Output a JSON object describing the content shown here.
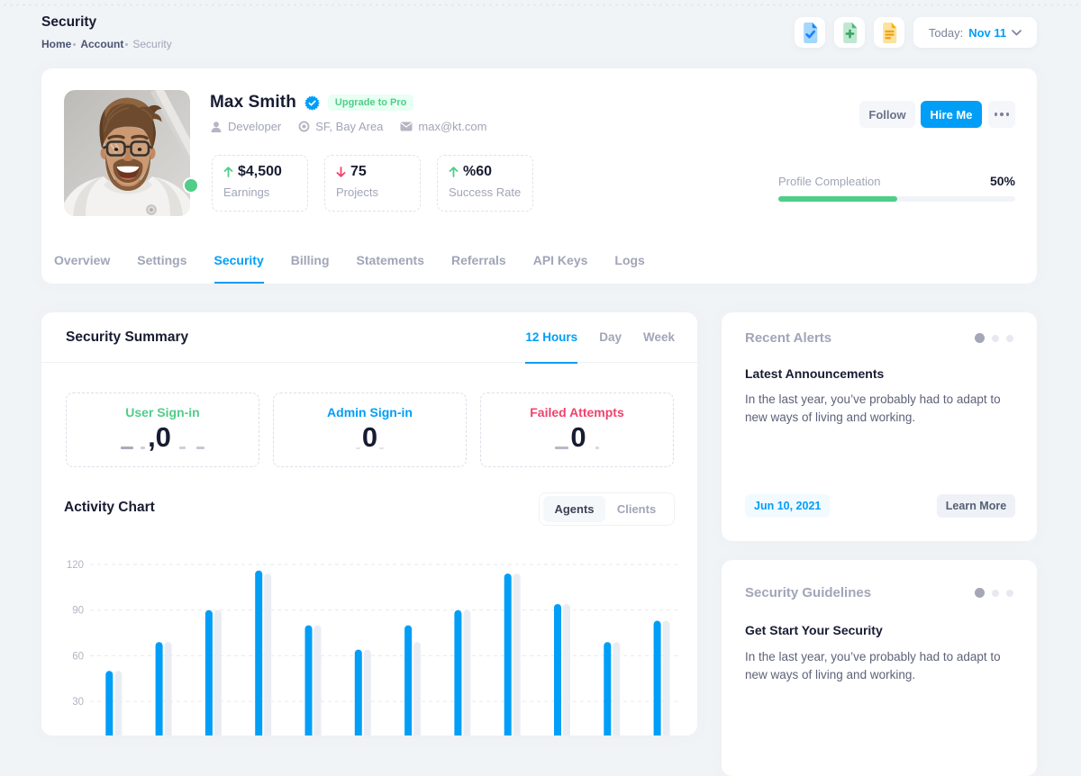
{
  "page": {
    "title": "Security",
    "breadcrumb": [
      "Home",
      "Account",
      "Security"
    ]
  },
  "toolbar": {
    "icons": [
      "file-check",
      "file-plus",
      "file-lines"
    ],
    "date_label": "Today:",
    "date_value": "Nov 11"
  },
  "profile": {
    "name": "Max Smith",
    "badge": "Upgrade to Pro",
    "meta": [
      {
        "icon": "user-icon",
        "text": "Developer"
      },
      {
        "icon": "pin-icon",
        "text": "SF, Bay Area"
      },
      {
        "icon": "mail-icon",
        "text": "max@kt.com"
      }
    ],
    "stats": [
      {
        "direction": "up",
        "value": "$4,500",
        "label": "Earnings"
      },
      {
        "direction": "down",
        "value": "75",
        "label": "Projects"
      },
      {
        "direction": "up",
        "value": "%60",
        "label": "Success Rate"
      }
    ],
    "actions": {
      "follow": "Follow",
      "hire": "Hire Me"
    },
    "progress": {
      "label": "Profile Compleation",
      "percent": "50%",
      "value": 50
    },
    "tabs": [
      "Overview",
      "Settings",
      "Security",
      "Billing",
      "Statements",
      "Referrals",
      "API Keys",
      "Logs"
    ],
    "active_tab": "Security"
  },
  "summary": {
    "title": "Security Summary",
    "range_tabs": [
      "12 Hours",
      "Day",
      "Week"
    ],
    "active_range": "12 Hours",
    "counters": [
      {
        "label": "User Sign-in",
        "value": ",0",
        "color": "#50cd89"
      },
      {
        "label": "Admin Sign-in",
        "value": "0",
        "color": "#009ef7"
      },
      {
        "label": "Failed Attempts",
        "value": "0",
        "color": "#f1416c"
      }
    ]
  },
  "activity": {
    "title": "Activity Chart",
    "toggle": [
      "Agents",
      "Clients"
    ],
    "active_toggle": "Agents"
  },
  "chart_data": {
    "type": "bar",
    "title": "Activity Chart",
    "series": [
      {
        "name": "Clients",
        "color": "#e9edf3",
        "values": [
          50,
          69,
          90,
          114,
          80,
          64,
          69,
          90,
          114,
          94,
          69,
          83
        ]
      },
      {
        "name": "Agents",
        "color": "#009ef7",
        "values": [
          50,
          69,
          90,
          116,
          80,
          64,
          80,
          90,
          114,
          94,
          69,
          83
        ]
      }
    ],
    "yticks": [
      30,
      60,
      90,
      120
    ],
    "ylim": [
      0,
      136
    ],
    "grid": "dashed-horizontal"
  },
  "alerts": {
    "title": "Recent Alerts",
    "heading": "Latest Announcements",
    "body": "In the last year, you’ve probably had to adapt to new ways of living and working.",
    "date": "Jun 10, 2021",
    "button": "Learn More"
  },
  "guidelines": {
    "title": "Security Guidelines",
    "heading": "Get Start Your Security",
    "body": "In the last year, you’ve probably had to adapt to new ways of living and working."
  },
  "colors": {
    "primary": "#009ef7",
    "success": "#50cd89",
    "danger": "#f1416c",
    "dark": "#181c32",
    "muted": "#a1a5b7",
    "page_bg": "#f1f4f7"
  }
}
